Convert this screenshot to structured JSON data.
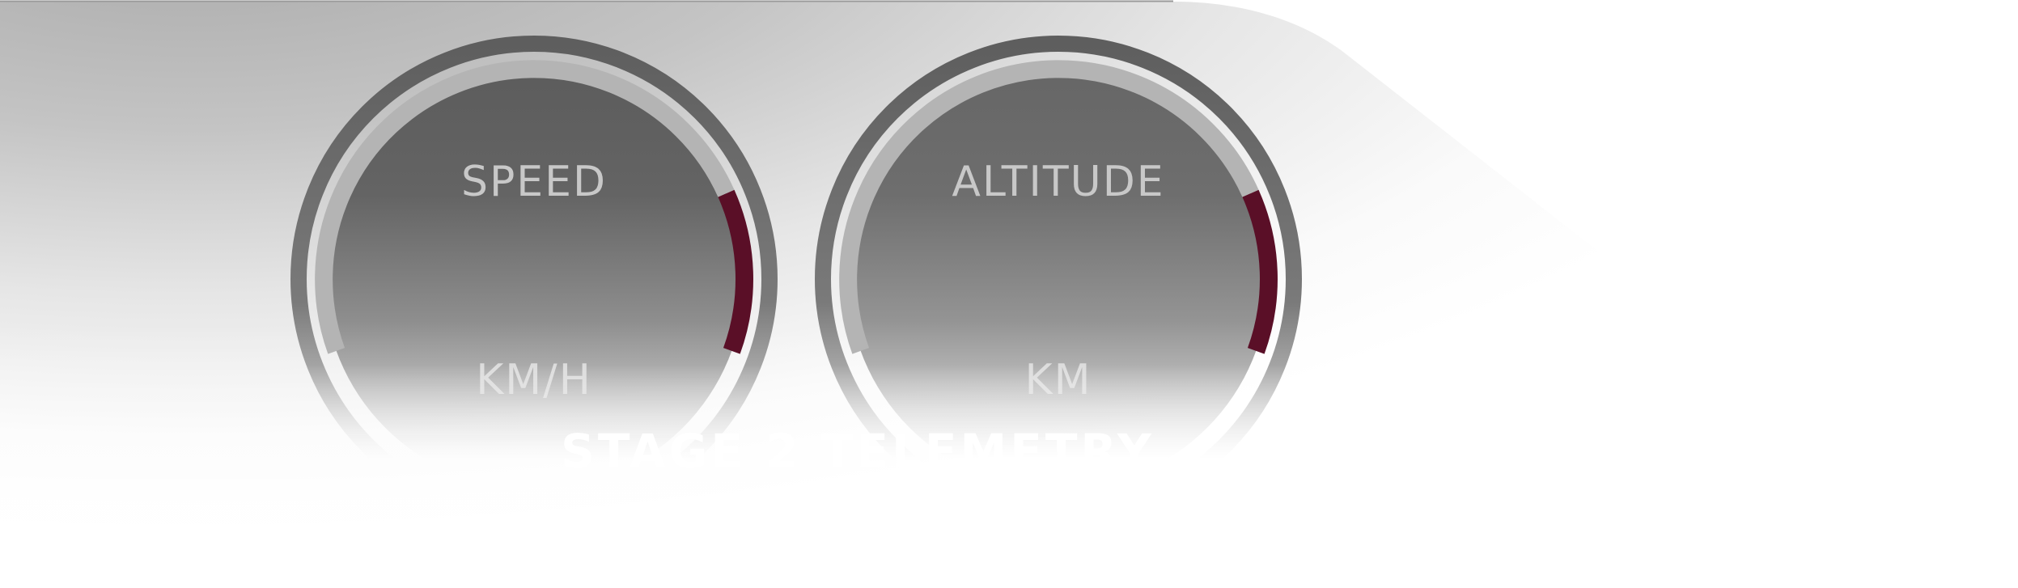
{
  "overlay": {
    "caption": "STAGE 2 TELEMETRY"
  },
  "gauges": [
    {
      "id": "speed",
      "label": "SPEED",
      "unit": "KM/H",
      "redline_fraction": 0.2
    },
    {
      "id": "altitude",
      "label": "ALTITUDE",
      "unit": "KM",
      "redline_fraction": 0.2
    }
  ],
  "colors": {
    "redline": "#5a0f27",
    "ring_outer": "#6a6a6a",
    "track": "#b4b4b4",
    "label": "#c8c8c8",
    "unit": "#dcdcdc",
    "caption": "#ffffff"
  }
}
